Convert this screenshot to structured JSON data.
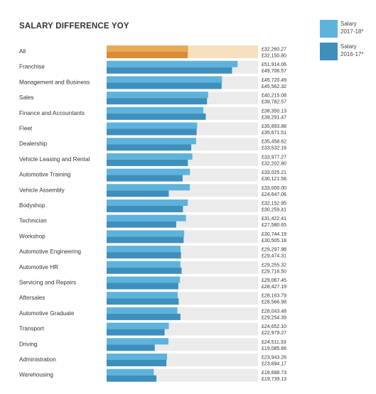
{
  "chart_data": {
    "type": "bar",
    "orientation": "horizontal",
    "title": "SALARY DIFFERENCE YOY",
    "currency": "£",
    "xlim": [
      0,
      60000
    ],
    "grid": false,
    "legend_position": "top-right",
    "series": [
      {
        "name": "Salary 2017-18*",
        "color": "#5eb3dc",
        "highlight_color": "#e8a85a"
      },
      {
        "name": "Salary 2016-17*",
        "color": "#3f8fbd",
        "highlight_color": "#d98b35"
      }
    ],
    "track_color": "#ebebeb",
    "highlight_track_color": "#f7dfc0",
    "categories": [
      "All",
      "Franchise",
      "Management and Business",
      "Sales",
      "Finance and Accountants",
      "Fleet",
      "Dealership",
      "Vehicle Leasing and Rental",
      "Automotive Training",
      "Vehicle Assembly",
      "Bodyshop",
      "Technician",
      "Workshop",
      "Automotive Engineering",
      "Automotive HR",
      "Servicing and Repairs",
      "Aftersales",
      "Automotive Graduate",
      "Transport",
      "Driving",
      "Administration",
      "Warehousing"
    ],
    "values_2017": [
      32260.27,
      51914.06,
      45720.49,
      40215.08,
      38350.13,
      35893.88,
      35458.62,
      33977.27,
      33025.21,
      33000.0,
      32152.95,
      31422.41,
      30744.19,
      29297.98,
      29255.32,
      29067.45,
      28163.79,
      28043.48,
      24652.1,
      24511.33,
      23943.26,
      18688.73
    ],
    "values_2016": [
      32150.8,
      49706.57,
      45562.32,
      39782.57,
      39291.47,
      35671.51,
      33532.16,
      32202.8,
      30121.58,
      24647.06,
      30259.41,
      27580.65,
      30505.18,
      29474.31,
      29716.5,
      28427.19,
      28566.98,
      29254.39,
      22979.27,
      19085.66,
      23694.17,
      19739.13
    ],
    "labels_2017": [
      "£32,260.27",
      "£51,914.06",
      "£45,720.49",
      "£40,215.08",
      "£38,350.13",
      "£35,893.88",
      "£35,458.62",
      "£33,977.27",
      "£33,025.21",
      "£33,000.00",
      "£32,152.95",
      "£31,422.41",
      "£30,744.19",
      "£29,297.98",
      "£29,255.32",
      "£29,067.45",
      "£28,163.79",
      "£28,043.48",
      "£24,652.10",
      "£24,511.33",
      "£23,943.26",
      "£18,688.73"
    ],
    "labels_2016": [
      "£32,150.80",
      "£49,706.57",
      "£45,562.32",
      "£39,782.57",
      "£39,291.47",
      "£35,671.51",
      "£33,532.16",
      "£32,202.80",
      "£30,121.58",
      "£24,647.06",
      "£30,259.41",
      "£27,580.65",
      "£30,505.18",
      "£29,474.31",
      "£29,716.50",
      "£28,427.19",
      "£28,566.98",
      "£29,254.39",
      "£22,979.27",
      "£19,085.66",
      "£23,694.17",
      "£19,739.13"
    ]
  },
  "legend": {
    "item1_line1": "Salary",
    "item1_line2": "2017-18*",
    "item2_line1": "Salary",
    "item2_line2": "2016-17*"
  }
}
